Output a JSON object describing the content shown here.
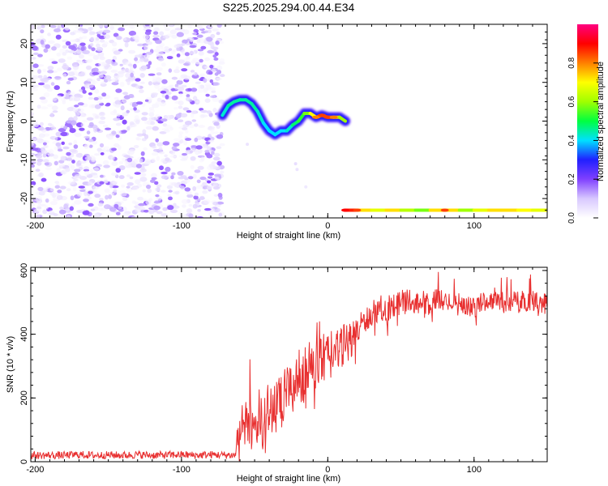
{
  "title": "S225.2025.294.00.44.E34",
  "chart_data": [
    {
      "type": "heatmap",
      "xlabel": "Height of straight line (km)",
      "ylabel": "Frequency (Hz)",
      "xlim": [
        -203,
        150
      ],
      "ylim": [
        -25,
        25
      ],
      "xticks": [
        -200,
        -100,
        0,
        100
      ],
      "yticks": [
        -20,
        -10,
        0,
        10,
        20
      ],
      "colorbar": {
        "label": "Normalized spectral amplitude",
        "range": [
          0,
          1
        ],
        "ticks": [
          "0.0",
          "0.2",
          "0.4",
          "0.6",
          "0.8"
        ],
        "colormap": [
          "#ffffff",
          "#d8c8ff",
          "#8040ff",
          "#2020ff",
          "#00e0ff",
          "#00ff40",
          "#a0ff00",
          "#ffff00",
          "#ff8000",
          "#ff0000",
          "#ff0080"
        ]
      },
      "noise_region": {
        "x_range": [
          -203,
          -72
        ],
        "amplitude": 0.15
      },
      "tone_track": {
        "x": [
          -72,
          -68,
          -64,
          -60,
          -56,
          -52,
          -48,
          -44,
          -40,
          -36,
          -32,
          -28,
          -24,
          -20,
          -16,
          -12,
          -8,
          -4,
          0,
          4,
          8,
          12
        ],
        "freq": [
          1.5,
          4,
          5,
          5.5,
          5.5,
          4.5,
          2.5,
          -0.5,
          -2.5,
          -3.5,
          -2.5,
          -2.5,
          -1,
          0,
          2,
          2,
          1,
          1.5,
          1,
          1,
          1,
          0
        ],
        "amplitude": [
          0.4,
          0.45,
          0.45,
          0.45,
          0.45,
          0.45,
          0.45,
          0.4,
          0.4,
          0.4,
          0.4,
          0.4,
          0.45,
          0.5,
          0.55,
          0.6,
          0.8,
          0.85,
          0.85,
          0.8,
          0.7,
          0.5
        ]
      },
      "low_band": {
        "x": [
          12,
          20,
          30,
          40,
          50,
          60,
          70,
          80,
          90,
          100,
          110,
          120,
          130,
          140,
          150
        ],
        "freq": [
          -23,
          -23,
          -23,
          -23,
          -23,
          -23,
          -23,
          -23,
          -23,
          -23,
          -23,
          -23,
          -23,
          -23,
          -23
        ],
        "amplitude": [
          0.9,
          0.85,
          0.6,
          0.75,
          0.7,
          0.55,
          0.6,
          0.85,
          0.6,
          0.6,
          0.75,
          0.7,
          0.75,
          0.65,
          0.7
        ]
      }
    },
    {
      "type": "line",
      "xlabel": "Height of straight line (km)",
      "ylabel": "SNR (10 * v/v)",
      "xlim": [
        -203,
        150
      ],
      "ylim": [
        0,
        610
      ],
      "xticks": [
        -200,
        -100,
        0,
        100
      ],
      "yticks": [
        0,
        200,
        400,
        600
      ],
      "series": [
        {
          "color": "#e83030",
          "x": [
            -203,
            -190,
            -180,
            -170,
            -160,
            -150,
            -140,
            -130,
            -120,
            -110,
            -100,
            -90,
            -80,
            -70,
            -63,
            -62,
            -60,
            -55,
            -50,
            -45,
            -40,
            -35,
            -30,
            -25,
            -20,
            -15,
            -10,
            -5,
            0,
            5,
            10,
            15,
            20,
            25,
            30,
            35,
            40,
            45,
            50,
            55,
            60,
            65,
            70,
            75,
            80,
            85,
            90,
            95,
            100,
            105,
            110,
            115,
            120,
            125,
            130,
            135,
            140,
            145,
            150
          ],
          "y": [
            20,
            20,
            20,
            22,
            20,
            21,
            20,
            22,
            20,
            21,
            22,
            20,
            22,
            21,
            20,
            80,
            100,
            120,
            110,
            140,
            160,
            170,
            200,
            230,
            260,
            280,
            300,
            320,
            330,
            340,
            360,
            380,
            410,
            440,
            460,
            470,
            480,
            490,
            500,
            510,
            500,
            490,
            500,
            510,
            500,
            505,
            500,
            490,
            480,
            500,
            505,
            510,
            500,
            505,
            500,
            505,
            510,
            500,
            490
          ],
          "noise": [
            12,
            12,
            12,
            12,
            12,
            12,
            12,
            12,
            12,
            12,
            12,
            12,
            12,
            12,
            12,
            60,
            70,
            80,
            80,
            90,
            90,
            90,
            90,
            90,
            90,
            90,
            85,
            80,
            80,
            75,
            70,
            60,
            50,
            40,
            35,
            35,
            40,
            40,
            40,
            35,
            35,
            30,
            35,
            35,
            35,
            30,
            30,
            30,
            30,
            30,
            30,
            30,
            35,
            35,
            35,
            35,
            35,
            35,
            35
          ]
        }
      ]
    }
  ]
}
